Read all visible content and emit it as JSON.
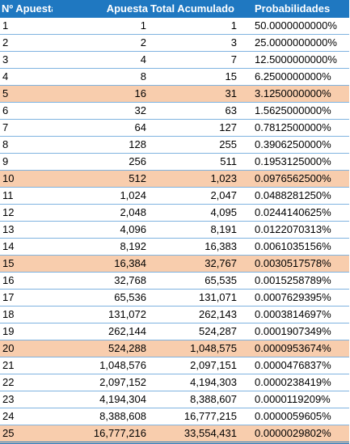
{
  "columns": [
    "Nº Apuesta",
    "Apuesta",
    "Total Acumulado",
    "Probabilidades"
  ],
  "highlight_color": "#f8cdad",
  "header_color": "#1f78c1",
  "rows": [
    [
      "1",
      "1",
      "1",
      "50.0000000000%"
    ],
    [
      "2",
      "2",
      "3",
      "25.0000000000%"
    ],
    [
      "3",
      "4",
      "7",
      "12.5000000000%"
    ],
    [
      "4",
      "8",
      "15",
      "6.2500000000%"
    ],
    [
      "5",
      "16",
      "31",
      "3.1250000000%"
    ],
    [
      "6",
      "32",
      "63",
      "1.5625000000%"
    ],
    [
      "7",
      "64",
      "127",
      "0.7812500000%"
    ],
    [
      "8",
      "128",
      "255",
      "0.3906250000%"
    ],
    [
      "9",
      "256",
      "511",
      "0.1953125000%"
    ],
    [
      "10",
      "512",
      "1,023",
      "0.0976562500%"
    ],
    [
      "11",
      "1,024",
      "2,047",
      "0.0488281250%"
    ],
    [
      "12",
      "2,048",
      "4,095",
      "0.0244140625%"
    ],
    [
      "13",
      "4,096",
      "8,191",
      "0.0122070313%"
    ],
    [
      "14",
      "8,192",
      "16,383",
      "0.0061035156%"
    ],
    [
      "15",
      "16,384",
      "32,767",
      "0.0030517578%"
    ],
    [
      "16",
      "32,768",
      "65,535",
      "0.0015258789%"
    ],
    [
      "17",
      "65,536",
      "131,071",
      "0.0007629395%"
    ],
    [
      "18",
      "131,072",
      "262,143",
      "0.0003814697%"
    ],
    [
      "19",
      "262,144",
      "524,287",
      "0.0001907349%"
    ],
    [
      "20",
      "524,288",
      "1,048,575",
      "0.0000953674%"
    ],
    [
      "21",
      "1,048,576",
      "2,097,151",
      "0.0000476837%"
    ],
    [
      "22",
      "2,097,152",
      "4,194,303",
      "0.0000238419%"
    ],
    [
      "23",
      "4,194,304",
      "8,388,607",
      "0.0000119209%"
    ],
    [
      "24",
      "8,388,608",
      "16,777,215",
      "0.0000059605%"
    ],
    [
      "25",
      "16,777,216",
      "33,554,431",
      "0.0000029802%"
    ]
  ]
}
